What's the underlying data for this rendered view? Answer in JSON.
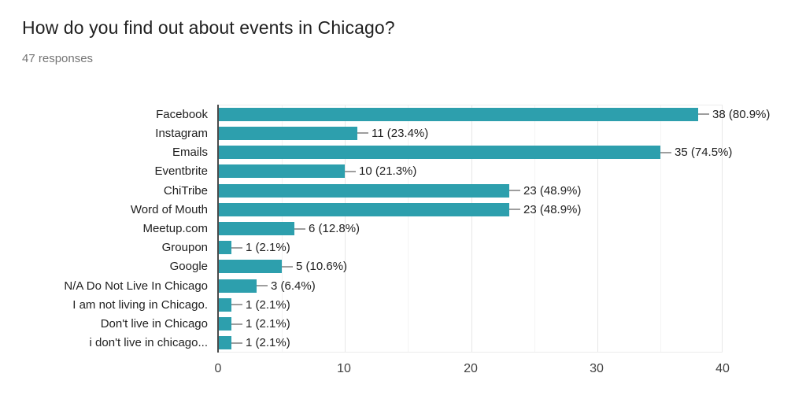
{
  "header": {
    "title": "How do you find out about events in Chicago?",
    "responses": "47 responses"
  },
  "chart_data": {
    "type": "bar",
    "orientation": "horizontal",
    "title": "How do you find out about events in Chicago?",
    "subtitle": "47 responses",
    "categories": [
      "Facebook",
      "Instagram",
      "Emails",
      "Eventbrite",
      "ChiTribe",
      "Word of Mouth",
      "Meetup.com",
      "Groupon",
      "Google",
      "N/A Do Not Live In Chicago",
      "I am not living in Chicago.",
      "Don't live in Chicago",
      "i don't live in chicago..."
    ],
    "values": [
      38,
      11,
      35,
      10,
      23,
      23,
      6,
      1,
      5,
      3,
      1,
      1,
      1
    ],
    "value_labels": [
      "38 (80.9%)",
      "11 (23.4%)",
      "35 (74.5%)",
      "10 (21.3%)",
      "23 (48.9%)",
      "23 (48.9%)",
      "6 (12.8%)",
      "1 (2.1%)",
      "5 (10.6%)",
      "3 (6.4%)",
      "1 (2.1%)",
      "1 (2.1%)",
      "1 (2.1%)"
    ],
    "total_responses": 47,
    "xlabel": "",
    "ylabel": "",
    "xlim": [
      0,
      40
    ],
    "xticks": [
      0,
      10,
      20,
      30,
      40
    ],
    "minor_gridlines": [
      5,
      15,
      25,
      35
    ],
    "grid": true,
    "legend": "none",
    "colors": {
      "bar": "#2d9fad",
      "axis": "#4a4a4a",
      "major_gridline": "#e7e7e7",
      "minor_gridline": "#f4f4f4",
      "leader": "#9e9e9e",
      "text": "#212121",
      "tick_text": "#424242",
      "subtitle_text": "#757575"
    }
  }
}
